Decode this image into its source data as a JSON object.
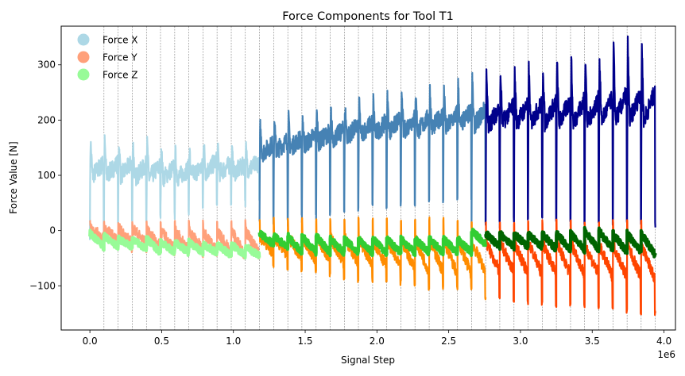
{
  "chart_data": {
    "type": "line",
    "title": "Force Components for Tool T1",
    "xlabel": "Signal Step",
    "ylabel": "Force Value [N]",
    "x_scale_label": "1e6",
    "xlim": [
      -0.2,
      4.08
    ],
    "ylim": [
      -180,
      370
    ],
    "x_ticks": [
      0.0,
      0.5,
      1.0,
      1.5,
      2.0,
      2.5,
      3.0,
      3.5,
      4.0
    ],
    "x_tick_labels": [
      "0.0",
      "0.5",
      "1.0",
      "1.5",
      "2.0",
      "2.5",
      "3.0",
      "3.5",
      "4.0"
    ],
    "y_ticks": [
      -100,
      0,
      100,
      200,
      300
    ],
    "y_tick_labels": [
      "−100",
      "0",
      "100",
      "200",
      "300"
    ],
    "legend_position": "top-left",
    "grid": false,
    "cycle_boundaries": [
      0.098,
      0.197,
      0.295,
      0.394,
      0.492,
      0.591,
      0.689,
      0.788,
      0.886,
      0.985,
      1.083,
      1.182,
      1.28,
      1.379,
      1.477,
      1.576,
      1.674,
      1.773,
      1.871,
      1.97,
      2.068,
      2.167,
      2.265,
      2.364,
      2.462,
      2.561,
      2.659,
      2.758,
      2.856,
      2.955,
      3.053,
      3.152,
      3.25,
      3.349,
      3.447,
      3.546,
      3.644,
      3.743,
      3.841,
      3.94
    ],
    "phases": [
      {
        "x_start": 0.0,
        "x_end": 1.18,
        "colors": {
          "x": "#add8e6",
          "y": "#ffa07a",
          "z": "#98fb98"
        }
      },
      {
        "x_start": 1.18,
        "x_end": 2.76,
        "colors": {
          "x": "#4682b4",
          "y": "#ff8c00",
          "z": "#32cd32"
        }
      },
      {
        "x_start": 2.76,
        "x_end": 3.94,
        "colors": {
          "x": "#00008b",
          "y": "#ff4500",
          "z": "#006400"
        }
      }
    ],
    "series": [
      {
        "name": "Force X",
        "key": "x",
        "legend_color": "#add8e6",
        "cycle_start": [
          100,
          100,
          100,
          95,
          95,
          95,
          95,
          100,
          105,
          105,
          105,
          110,
          140,
          145,
          150,
          155,
          160,
          165,
          170,
          175,
          175,
          180,
          180,
          180,
          185,
          185,
          190,
          190,
          190,
          195,
          195,
          195,
          195,
          195,
          195,
          195,
          200,
          200,
          200,
          200
        ],
        "cycle_peak": [
          165,
          165,
          165,
          165,
          160,
          155,
          145,
          145,
          170,
          150,
          145,
          150,
          190,
          200,
          205,
          210,
          215,
          220,
          230,
          235,
          240,
          245,
          250,
          255,
          260,
          265,
          270,
          280,
          285,
          290,
          295,
          300,
          305,
          310,
          315,
          320,
          315,
          345,
          348,
          348
        ],
        "cycle_dip": [
          0,
          10,
          15,
          20,
          25,
          30,
          35,
          40,
          45,
          50,
          55,
          60,
          15,
          20,
          25,
          30,
          30,
          35,
          40,
          45,
          45,
          50,
          50,
          55,
          55,
          60,
          60,
          15,
          15,
          20,
          20,
          20,
          20,
          20,
          15,
          15,
          15,
          15,
          12,
          10
        ]
      },
      {
        "name": "Force Y",
        "key": "y",
        "legend_color": "#ffa07a",
        "cycle_start": [
          5,
          5,
          5,
          5,
          0,
          0,
          0,
          0,
          0,
          0,
          0,
          0,
          -10,
          -10,
          -10,
          -10,
          -10,
          -12,
          -12,
          -12,
          -15,
          -15,
          -15,
          -15,
          -15,
          -15,
          -15,
          -20,
          -20,
          -20,
          -20,
          -20,
          -20,
          -20,
          -20,
          -25,
          -25,
          -25,
          -25,
          -25
        ],
        "cycle_end": [
          -15,
          -20,
          -25,
          -25,
          -30,
          -35,
          -35,
          -35,
          -40,
          -40,
          -45,
          -45,
          -40,
          -45,
          -50,
          -55,
          -55,
          -60,
          -60,
          -65,
          -65,
          -70,
          -70,
          -75,
          -75,
          -80,
          -80,
          -75,
          -75,
          -75,
          -80,
          -80,
          -80,
          -80,
          -80,
          -80,
          -85,
          -85,
          -85,
          -90
        ],
        "cycle_min": [
          -30,
          -35,
          -40,
          -40,
          -45,
          -45,
          -45,
          -50,
          -50,
          -50,
          -50,
          -55,
          -70,
          -75,
          -80,
          -80,
          -85,
          -90,
          -95,
          -95,
          -100,
          -100,
          -105,
          -110,
          -110,
          -110,
          -110,
          -130,
          -130,
          -130,
          -135,
          -135,
          -140,
          -140,
          -140,
          -145,
          -145,
          -150,
          -155,
          -155
        ],
        "cycle_max": [
          20,
          20,
          20,
          20,
          20,
          20,
          20,
          20,
          20,
          20,
          20,
          20,
          20,
          25,
          25,
          25,
          25,
          25,
          25,
          25,
          25,
          25,
          25,
          25,
          25,
          25,
          25,
          20,
          20,
          20,
          20,
          20,
          20,
          20,
          20,
          20,
          20,
          20,
          20,
          20
        ]
      },
      {
        "name": "Force Z",
        "key": "z",
        "legend_color": "#98fb98",
        "cycle_start": [
          -5,
          -10,
          -15,
          -15,
          -15,
          -20,
          -20,
          -20,
          -25,
          -25,
          -25,
          -30,
          -5,
          -10,
          -10,
          -10,
          -10,
          -15,
          -15,
          -15,
          -15,
          -15,
          -15,
          -15,
          -15,
          -15,
          -15,
          0,
          -5,
          -5,
          -5,
          -5,
          -5,
          -5,
          -5,
          0,
          0,
          -5,
          -5,
          -5
        ],
        "cycle_end": [
          -30,
          -30,
          -30,
          -35,
          -40,
          -40,
          -40,
          -40,
          -40,
          -45,
          -45,
          -45,
          -25,
          -30,
          -40,
          -40,
          -40,
          -40,
          -40,
          -40,
          -40,
          -40,
          -40,
          -40,
          -40,
          -40,
          -40,
          -25,
          -30,
          -30,
          -30,
          -30,
          -35,
          -35,
          -35,
          -35,
          -35,
          -40,
          -40,
          -45
        ]
      }
    ]
  }
}
